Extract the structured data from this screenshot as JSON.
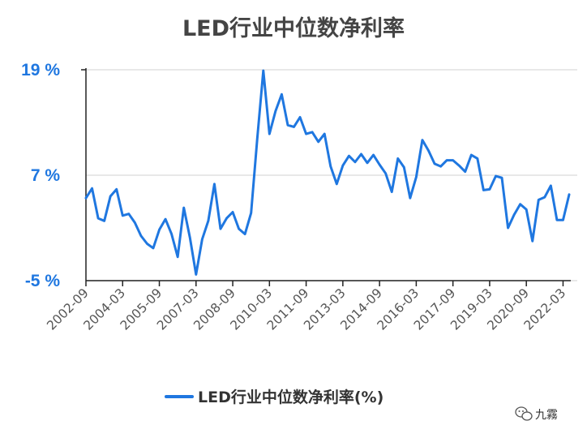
{
  "chart_data": {
    "type": "line",
    "title": "LED行业中位数净利率",
    "xlabel": "",
    "ylabel": "",
    "ylim": [
      -5,
      19
    ],
    "y_ticks": [
      "19 %",
      "7 %",
      "-5 %"
    ],
    "y_tick_values": [
      19,
      7,
      -5
    ],
    "grid": true,
    "legend_position": "bottom",
    "x_ticks": [
      "2002-09",
      "2004-03",
      "2005-09",
      "2007-03",
      "2008-09",
      "2010-03",
      "2011-09",
      "2013-03",
      "2014-09",
      "2016-03",
      "2017-09",
      "2019-03",
      "2020-09",
      "2022-03"
    ],
    "series": [
      {
        "name": "LED行业中位数净利率(%)",
        "color": "#1f77e0",
        "values": [
          4.4,
          5.5,
          2.1,
          1.8,
          4.6,
          5.4,
          2.4,
          2.6,
          1.6,
          0.1,
          -0.8,
          -1.3,
          0.8,
          2.0,
          0.3,
          -2.3,
          3.3,
          -0.1,
          -4.3,
          -0.3,
          1.8,
          6.0,
          0.9,
          2.1,
          2.8,
          0.9,
          0.3,
          2.7,
          11.1,
          18.9,
          11.7,
          14.3,
          16.2,
          12.7,
          12.5,
          13.6,
          11.7,
          11.9,
          10.8,
          11.7,
          8.0,
          6.0,
          8.1,
          9.2,
          8.5,
          9.4,
          8.4,
          9.3,
          8.2,
          7.2,
          5.1,
          8.9,
          7.9,
          4.4,
          6.8,
          11.0,
          9.8,
          8.3,
          8.0,
          8.7,
          8.7,
          8.1,
          7.4,
          9.3,
          8.9,
          5.3,
          5.4,
          6.9,
          6.7,
          1.0,
          2.5,
          3.7,
          3.1,
          -0.5,
          4.2,
          4.5,
          5.8,
          1.9,
          1.9,
          4.8
        ]
      }
    ]
  },
  "legend": {
    "label": "LED行业中位数净利率(%)"
  },
  "watermark": {
    "text": "九霧",
    "icon": "wechat-icon"
  }
}
